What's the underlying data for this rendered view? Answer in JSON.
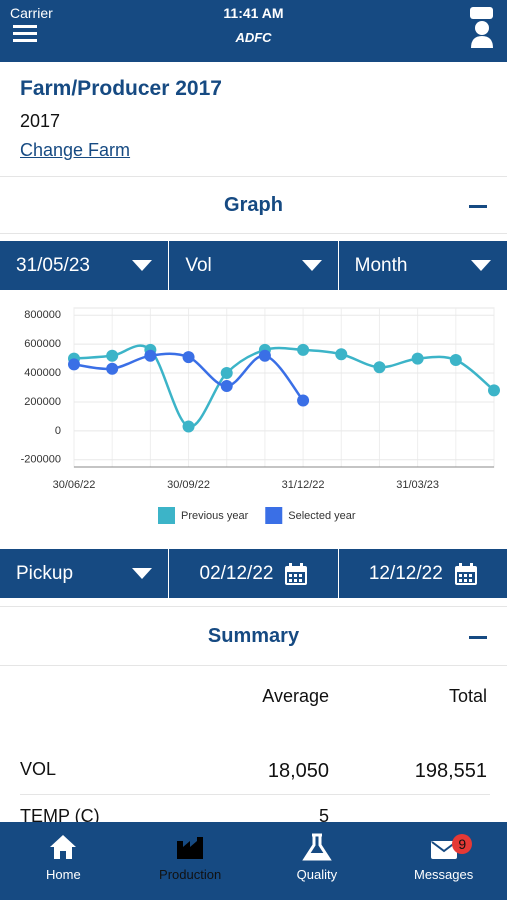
{
  "status_bar": {
    "carrier": "Carrier",
    "time": "11:41 AM"
  },
  "header": {
    "logo": "ADFC"
  },
  "farm": {
    "title": "Farm/Producer 2017",
    "subtitle": "2017",
    "link": "Change Farm"
  },
  "graph_section": {
    "title": "Graph"
  },
  "graph_filters": [
    "31/05/23",
    "Vol",
    "Month"
  ],
  "chart_data": {
    "type": "line",
    "categories": [
      "30/06/22",
      null,
      null,
      "30/09/22",
      null,
      null,
      "31/12/22",
      null,
      null,
      "31/03/23",
      null,
      null
    ],
    "series": [
      {
        "name": "Previous year",
        "color": "#3cb4c8",
        "values": [
          500000,
          520000,
          560000,
          30000,
          400000,
          560000,
          560000,
          530000,
          440000,
          500000,
          490000,
          280000
        ]
      },
      {
        "name": "Selected year",
        "color": "#3a6fe6",
        "values": [
          460000,
          430000,
          520000,
          510000,
          310000,
          520000,
          210000,
          null,
          null,
          null,
          null,
          null
        ]
      }
    ],
    "ylim": [
      -250000,
      850000
    ],
    "yticks": [
      -200000,
      0,
      200000,
      400000,
      600000,
      800000
    ],
    "grid": true,
    "legend": "bottom"
  },
  "pickup_filters": [
    "Pickup",
    "02/12/22",
    "12/12/22"
  ],
  "summary": {
    "title": "Summary",
    "headers": [
      "Average",
      "Total"
    ],
    "rows": [
      [
        "VOL",
        "18,050",
        "198,551"
      ],
      [
        "TEMP (C)",
        "5"
      ]
    ]
  },
  "tabs": [
    "Home",
    "Production",
    "Quality",
    "Messages"
  ],
  "badge": "9"
}
